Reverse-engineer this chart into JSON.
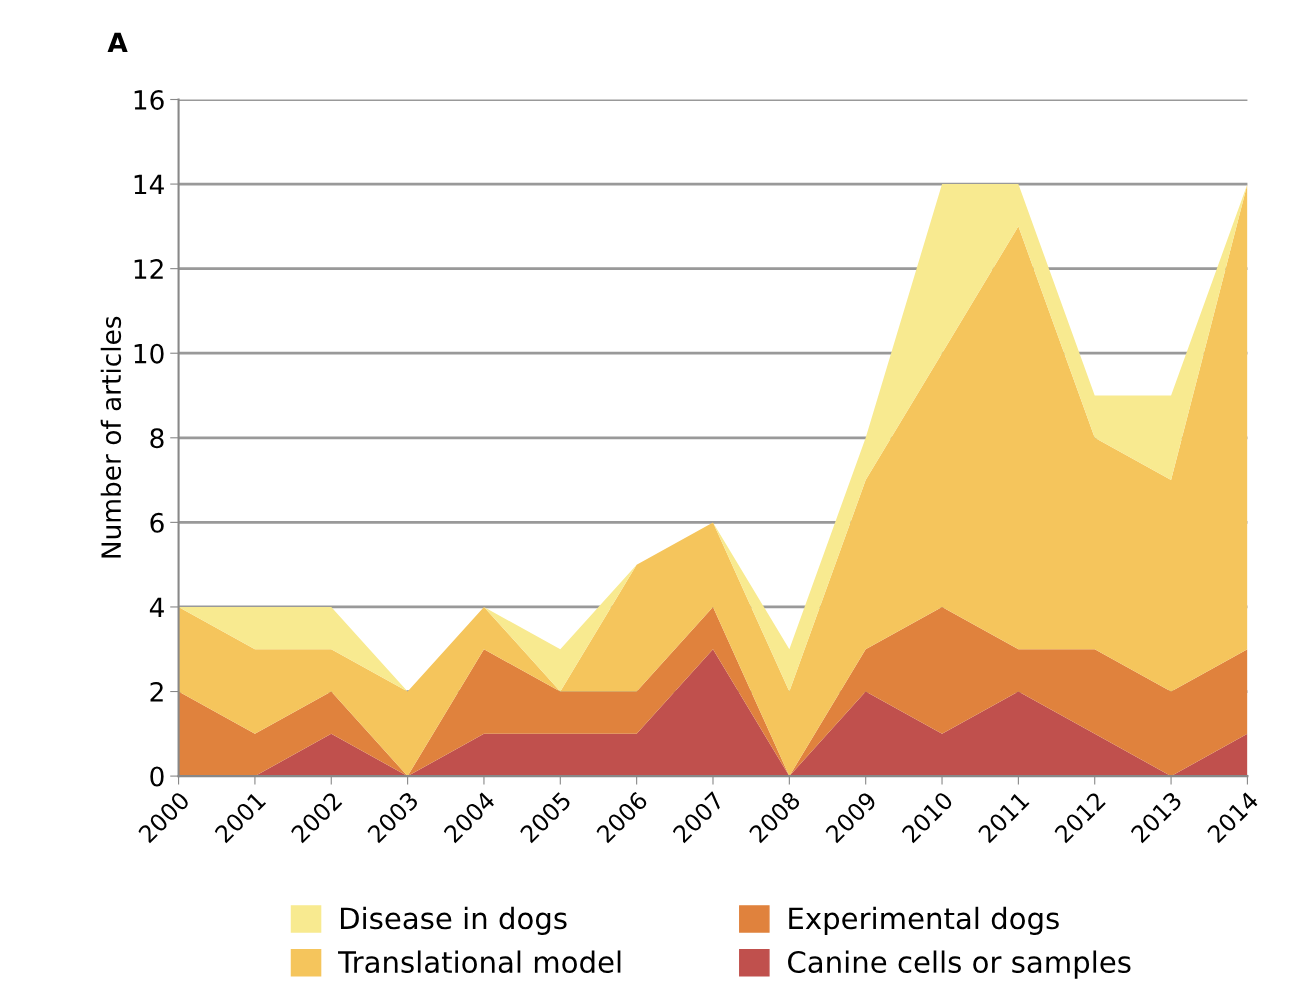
{
  "chart_data": {
    "type": "area",
    "stacked": true,
    "ylabel": "Number of articles",
    "annotations": [
      "A"
    ],
    "categories": [
      "2000",
      "2001",
      "2002",
      "2003",
      "2004",
      "2005",
      "2006",
      "2007",
      "2008",
      "2009",
      "2010",
      "2011",
      "2012",
      "2013",
      "2014"
    ],
    "series": [
      {
        "name": "Canine cells or samples",
        "color": "#c0504d",
        "values": [
          0,
          0,
          1,
          0,
          1,
          1,
          1,
          3,
          0,
          2,
          1,
          2,
          1,
          0,
          1
        ]
      },
      {
        "name": "Experimental dogs",
        "color": "#e0823d",
        "values": [
          2,
          1,
          1,
          0,
          2,
          1,
          1,
          1,
          0,
          1,
          3,
          1,
          2,
          2,
          2
        ]
      },
      {
        "name": "Translational model",
        "color": "#f5c55c",
        "values": [
          2,
          2,
          1,
          2,
          1,
          0,
          3,
          2,
          2,
          4,
          6,
          10,
          5,
          5,
          11
        ]
      },
      {
        "name": "Disease in dogs",
        "color": "#f8ea90",
        "values": [
          0,
          1,
          1,
          0,
          0,
          1,
          0,
          0,
          1,
          1,
          4,
          1,
          1,
          2,
          0
        ]
      }
    ],
    "ylim": [
      0,
      16
    ],
    "yticks": [
      0,
      2,
      4,
      6,
      8,
      10,
      12,
      14,
      16
    ],
    "grid": "y",
    "legend": "bottom"
  }
}
